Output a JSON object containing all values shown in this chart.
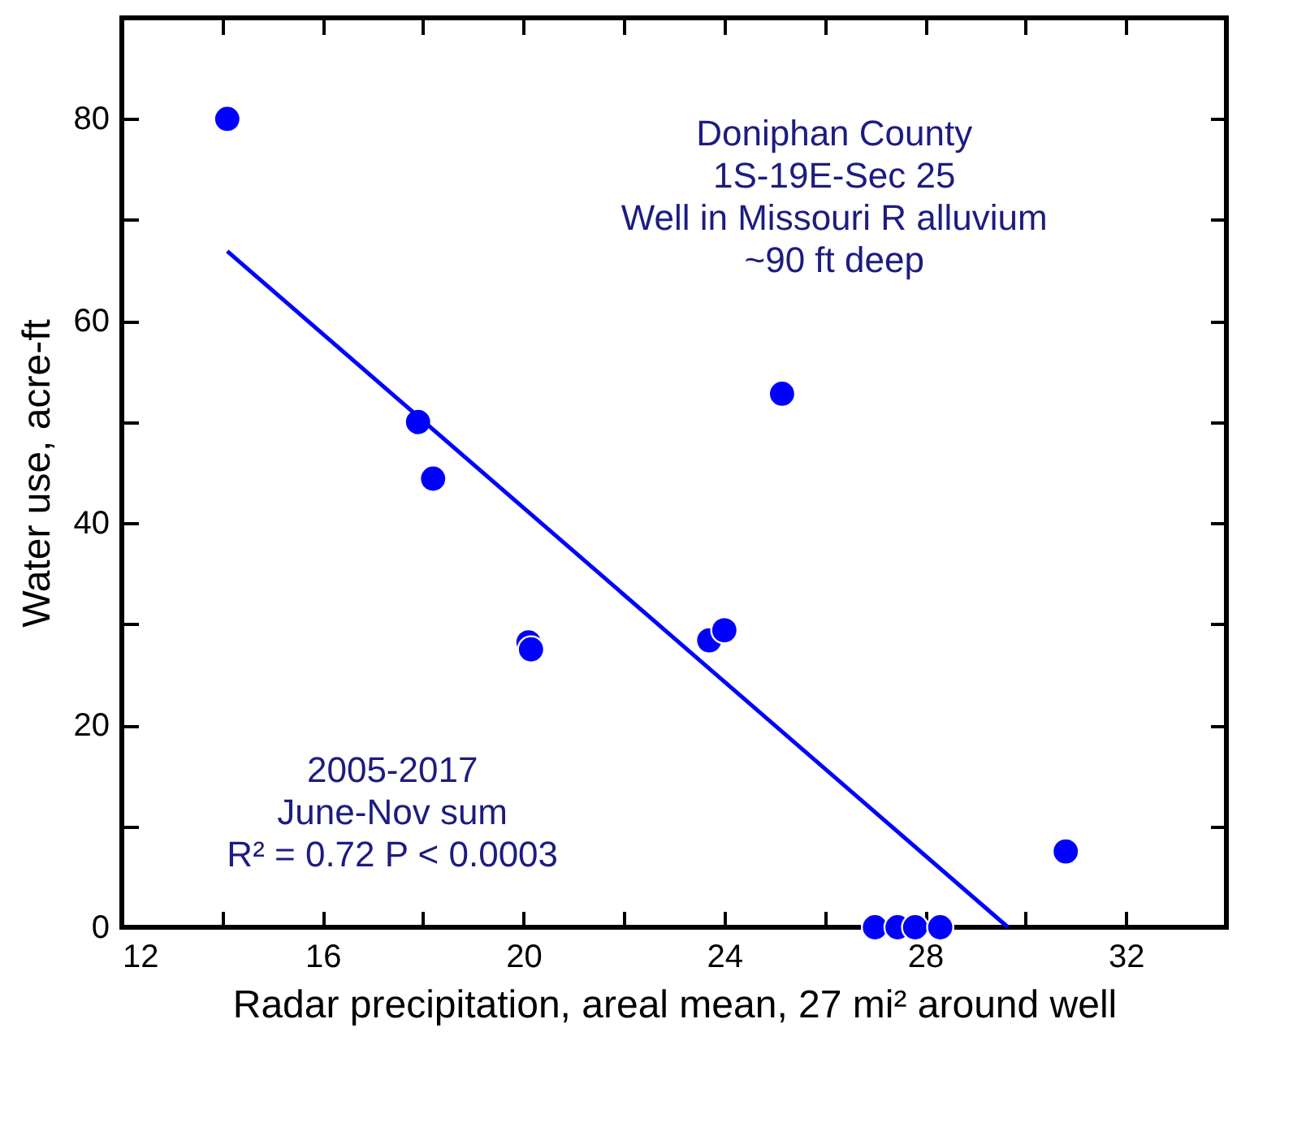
{
  "chart_data": {
    "type": "scatter",
    "xlabel": "Radar precipitation, areal mean, 27 mi² around well",
    "ylabel": "Water use, acre-ft",
    "xlim": [
      12,
      34
    ],
    "ylim": [
      0,
      90
    ],
    "xticks": [
      12,
      {
        "value": 14,
        "label": null
      },
      16,
      {
        "value": 18,
        "label": null
      },
      20,
      {
        "value": 22,
        "label": null
      },
      24,
      {
        "value": 26,
        "label": null
      },
      28,
      {
        "value": 30,
        "label": null
      },
      32
    ],
    "yticks": [
      0,
      {
        "value": 10,
        "label": null
      },
      20,
      {
        "value": 30,
        "label": null
      },
      40,
      {
        "value": 50,
        "label": null
      },
      60,
      {
        "value": 70,
        "label": null
      },
      80
    ],
    "grid": false,
    "series": [
      {
        "marker": "circle",
        "color": "#0000ff",
        "x": [
          14.1,
          17.9,
          18.2,
          20.1,
          20.15,
          23.7,
          24.0,
          25.15,
          30.8,
          27.0,
          27.45,
          27.8,
          28.3
        ],
        "values": [
          80,
          50,
          44.4,
          28.2,
          27.5,
          28.4,
          29.4,
          52.8,
          7.5,
          0,
          0,
          0,
          0
        ]
      },
      {
        "type": "line",
        "color": "#0000ff",
        "x": [
          14.1,
          29.65
        ],
        "values": [
          66.9,
          0
        ]
      }
    ],
    "annotations": [
      "Doniphan County\n1S-19E-Sec 25\nWell in Missouri R alluvium\n~90 ft deep",
      "2005-2017\nJune-Nov sum\nR² = 0.72  P < 0.0003"
    ]
  }
}
